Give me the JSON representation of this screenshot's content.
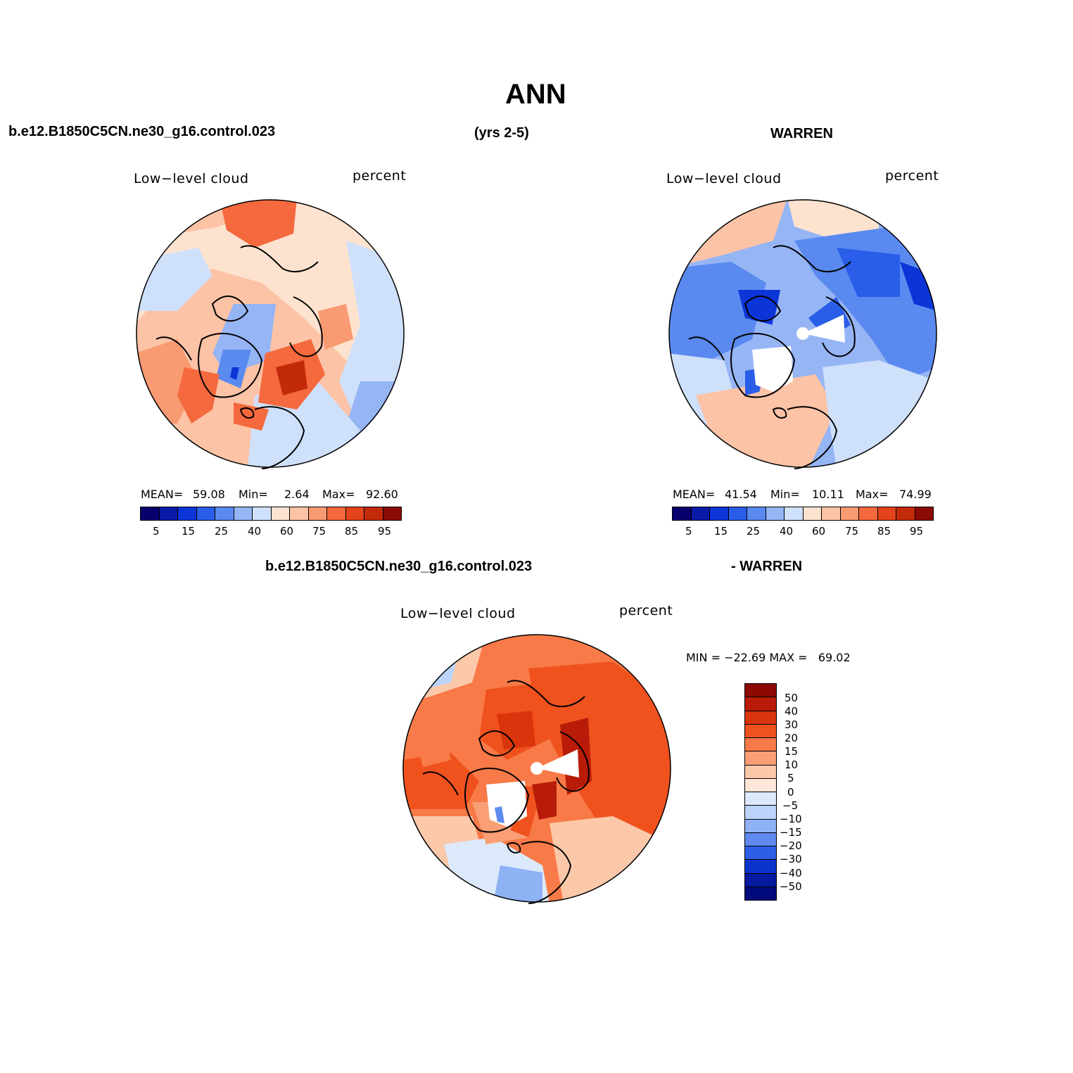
{
  "title": "ANN",
  "header": {
    "case_name": "b.e12.B1850C5CN.ne30_g16.control.023",
    "years": "(yrs 2-5)",
    "obs_name": "WARREN"
  },
  "panel_model": {
    "field_label": "Low−level cloud",
    "units_label": "percent",
    "mean_label": "MEAN=",
    "mean_value": "59.08",
    "min_label": "Min=",
    "min_value": "2.64",
    "max_label": "Max=",
    "max_value": "92.60",
    "colorbar_ticks": [
      "5",
      "15",
      "25",
      "40",
      "60",
      "75",
      "85",
      "95"
    ]
  },
  "panel_obs": {
    "field_label": "Low−level cloud",
    "units_label": "percent",
    "mean_label": "MEAN=",
    "mean_value": "41.54",
    "min_label": "Min=",
    "min_value": "10.11",
    "max_label": "Max=",
    "max_value": "74.99",
    "colorbar_ticks": [
      "5",
      "15",
      "25",
      "40",
      "60",
      "75",
      "85",
      "95"
    ]
  },
  "panel_diff": {
    "case_name": "b.e12.B1850C5CN.ne30_g16.control.023",
    "obs_name": "- WARREN",
    "field_label": "Low−level cloud",
    "units_label": "percent",
    "minmax_text": "MIN = −22.69 MAX =   69.02",
    "colorbar_ticks": [
      "50",
      "40",
      "30",
      "20",
      "15",
      "10",
      "5",
      "0",
      "−5",
      "−10",
      "−15",
      "−20",
      "−30",
      "−40",
      "−50"
    ]
  },
  "colors": {
    "abs_scale": [
      "#08006e",
      "#0a1aa8",
      "#0c35d8",
      "#2a5ee8",
      "#5a8af0",
      "#95b5f5",
      "#cfe0fb",
      "#fde3cf",
      "#fcc3a6",
      "#f89a72",
      "#f5693e",
      "#e5431a",
      "#c22a0a",
      "#8c0a04"
    ],
    "diff_scale": [
      "#8c0a04",
      "#b81c08",
      "#d9350c",
      "#f0521e",
      "#f87a48",
      "#fa9f75",
      "#fcc8aa",
      "#fde7d8",
      "#dce9fb",
      "#bcd3fa",
      "#8fb2f5",
      "#5f8bf0",
      "#2d5fe6",
      "#0c33cc",
      "#061aa0",
      "#020a7c"
    ]
  }
}
